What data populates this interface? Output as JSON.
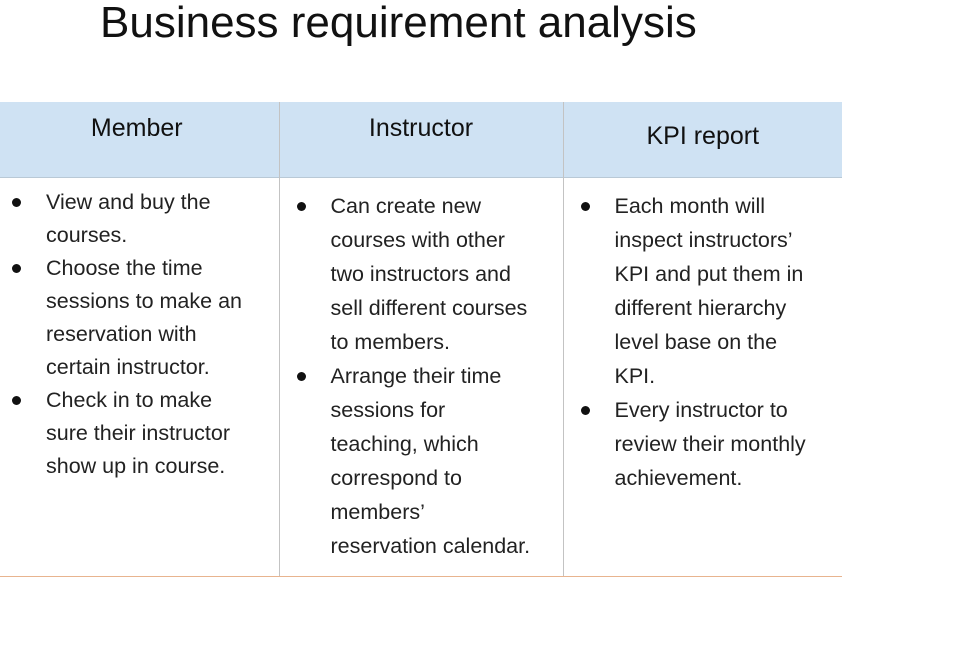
{
  "title": "Business requirement analysis",
  "columns": [
    {
      "header": "Member",
      "bullets": [
        "View and buy the\ncourses.",
        "Choose the time\nsessions to make an\nreservation with\ncertain instructor.",
        "Check in to make\nsure their instructor\nshow up in course."
      ]
    },
    {
      "header": "Instructor",
      "bullets": [
        "Can create new\ncourses with other\ntwo instructors and\nsell different courses\nto members.",
        "Arrange their time\nsessions for\nteaching, which\ncorrespond to\nmembers’\nreservation calendar."
      ]
    },
    {
      "header": "KPI report",
      "bullets": [
        "Each month will\ninspect instructors’\nKPI and put them in\ndifferent hierarchy\nlevel base on the\nKPI.",
        "Every instructor to\nreview their monthly\nachievement."
      ]
    }
  ],
  "colors": {
    "header_background": "#cfe2f3",
    "bottom_rule": "#e8b48f",
    "column_divider": "#c3c3c3"
  }
}
